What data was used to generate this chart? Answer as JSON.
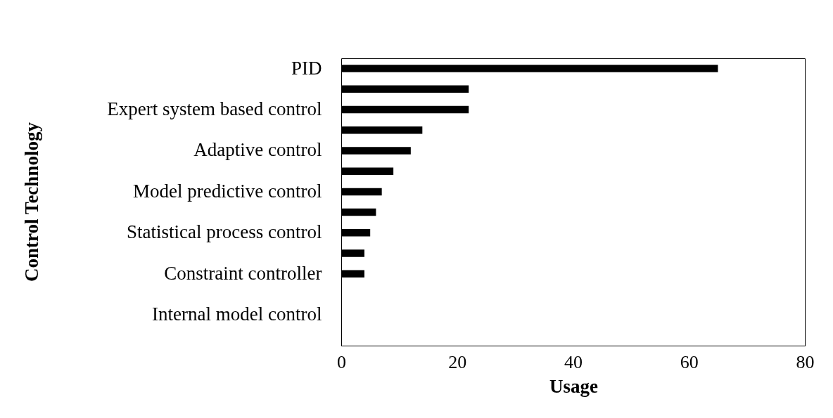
{
  "chart_data": {
    "type": "bar",
    "orientation": "horizontal",
    "xlabel": "Usage",
    "ylabel": "Control Technology",
    "categories": [
      "PID",
      null,
      "Expert system based control",
      null,
      "Adaptive control",
      null,
      "Model predictive control",
      null,
      "Statistical process control",
      null,
      "Constraint controller",
      null,
      "Internal model control",
      null
    ],
    "values": [
      65,
      22,
      22,
      14,
      12,
      9,
      7,
      6,
      5,
      4,
      4,
      0,
      0,
      0
    ],
    "color": "#000000",
    "xlim": [
      0,
      80
    ],
    "xticks": [
      0,
      20,
      40,
      60,
      80
    ],
    "grid": false
  }
}
